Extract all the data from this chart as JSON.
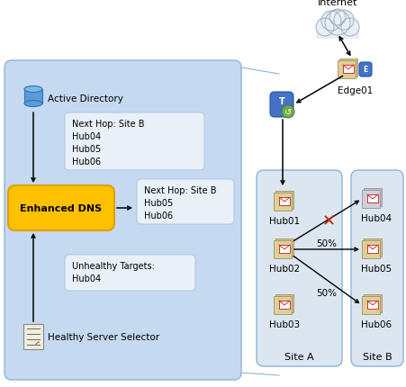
{
  "fig_w": 4.52,
  "fig_h": 4.31,
  "dpi": 100,
  "bg": "#ffffff",
  "panel_bg": "#c5d9f1",
  "panel_border": "#8db4d8",
  "site_bg": "#dce6f1",
  "site_border": "#8db4d8",
  "info_box_bg": "#e8f0f8",
  "info_box_border": "#b0c8e0",
  "dns_bg": "#ffc000",
  "dns_border": "#e0a000",
  "black": "#000000",
  "red_x": "#cc2200",
  "blue_cyl": "#5b9bd5",
  "blue_cyl_top": "#7bb8e8",
  "blue_cyl_dark": "#2e75b6",
  "cloud_fill": "#e8eef4",
  "cloud_border": "#9ab0c4",
  "server_body": "#c8b878",
  "server_dark": "#a09060",
  "server_light": "#e0d098",
  "shield_blue": "#4472c4",
  "shield_green": "#70ad47",
  "hub_body": "#c8b878",
  "hub_env": "#ffffff",
  "hub_env_border": "#cc3333",
  "hub04_body": "#b8b8c8",
  "hub04_env": "#ffffff",
  "hub04_env_border": "#cc3333",
  "doc_fill": "#f0ede0",
  "doc_border": "#888880",
  "active_dir_label": "Active Directory",
  "enhanced_dns_label": "Enhanced DNS",
  "healthy_sel_label": "Healthy Server Selector",
  "box1_text": "Next Hop: Site B\nHub04\nHub05\nHub06",
  "box2_text": "Next Hop: Site B\nHub05\nHub06",
  "box3_text": "Unhealthy Targets:\nHub04",
  "internet_label": "Internet",
  "edge01_label": "Edge01",
  "hub01_label": "Hub01",
  "hub02_label": "Hub02",
  "hub03_label": "Hub03",
  "hub04_label": "Hub04",
  "hub05_label": "Hub05",
  "hub06_label": "Hub06",
  "site_a_label": "Site A",
  "site_b_label": "Site B",
  "pct50": "50%"
}
